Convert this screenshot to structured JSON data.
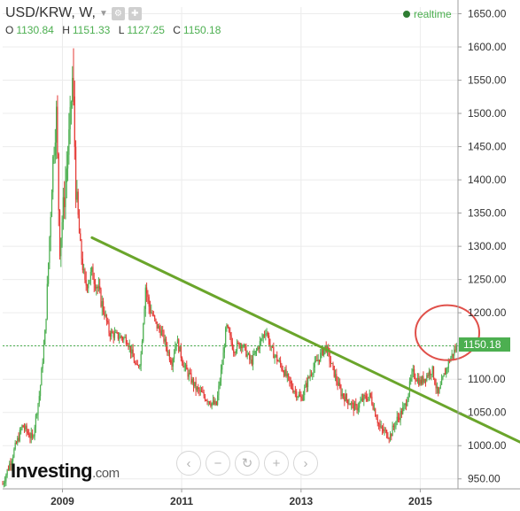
{
  "header": {
    "symbol": "USD/KRW, W,",
    "realtime_label": "realtime",
    "ohlc": {
      "open_label": "O",
      "open": "1130.84",
      "high_label": "H",
      "high": "1151.33",
      "low_label": "L",
      "low": "1127.25",
      "close_label": "C",
      "close": "1150.18"
    }
  },
  "branding": {
    "logo_text": "Investing",
    "logo_suffix": ".com"
  },
  "controls": [
    {
      "name": "scroll-left-button",
      "glyph": "‹"
    },
    {
      "name": "zoom-out-button",
      "glyph": "−"
    },
    {
      "name": "reset-button",
      "glyph": "↻"
    },
    {
      "name": "zoom-in-button",
      "glyph": "+"
    },
    {
      "name": "scroll-right-button",
      "glyph": "›"
    }
  ],
  "colors": {
    "up": "#4caf50",
    "down": "#e53935",
    "trendline": "#6aa52b",
    "circle": "#e0504a",
    "price_line": "#4caf50",
    "text": "#333333"
  },
  "chart_data": {
    "type": "candlestick",
    "y_ticks": [
      950,
      1000,
      1050,
      1100,
      1150,
      1200,
      1250,
      1300,
      1350,
      1400,
      1450,
      1500,
      1550,
      1600,
      1650
    ],
    "y_tick_labels": [
      "950.00",
      "1000.00",
      "1050.00",
      "1100.00",
      "1150.00",
      "1200.00",
      "1250.00",
      "1300.00",
      "1350.00",
      "1400.00",
      "1450.00",
      "1500.00",
      "1550.00",
      "1600.00",
      "1650.00"
    ],
    "ylim": [
      935,
      1660
    ],
    "xlim": [
      "2008-01-01",
      "2015-08-20"
    ],
    "x_ticks": [
      {
        "date": "2009-01-01",
        "label": "2009"
      },
      {
        "date": "2011-01-01",
        "label": "2011"
      },
      {
        "date": "2013-01-01",
        "label": "2013"
      },
      {
        "date": "2015-01-01",
        "label": "2015"
      }
    ],
    "last_price": 1150.18,
    "last_price_label": "1150.18",
    "close_path": [
      [
        "2008-01-01",
        942
      ],
      [
        "2008-03-01",
        985
      ],
      [
        "2008-05-01",
        1030
      ],
      [
        "2008-07-01",
        1010
      ],
      [
        "2008-08-15",
        1080
      ],
      [
        "2008-09-20",
        1180
      ],
      [
        "2008-10-15",
        1320
      ],
      [
        "2008-11-01",
        1420
      ],
      [
        "2008-11-25",
        1500
      ],
      [
        "2008-12-15",
        1300
      ],
      [
        "2009-01-15",
        1380
      ],
      [
        "2009-02-15",
        1480
      ],
      [
        "2009-03-05",
        1560
      ],
      [
        "2009-03-25",
        1380
      ],
      [
        "2009-04-20",
        1300
      ],
      [
        "2009-05-20",
        1240
      ],
      [
        "2009-07-01",
        1260
      ],
      [
        "2009-08-01",
        1240
      ],
      [
        "2009-09-15",
        1200
      ],
      [
        "2009-10-15",
        1170
      ],
      [
        "2009-12-01",
        1165
      ],
      [
        "2010-02-01",
        1160
      ],
      [
        "2010-04-01",
        1115
      ],
      [
        "2010-04-25",
        1130
      ],
      [
        "2010-05-25",
        1240
      ],
      [
        "2010-06-15",
        1210
      ],
      [
        "2010-08-01",
        1180
      ],
      [
        "2010-09-01",
        1170
      ],
      [
        "2010-11-01",
        1125
      ],
      [
        "2010-12-01",
        1160
      ],
      [
        "2011-01-15",
        1120
      ],
      [
        "2011-04-01",
        1085
      ],
      [
        "2011-07-01",
        1065
      ],
      [
        "2011-08-01",
        1060
      ],
      [
        "2011-09-10",
        1130
      ],
      [
        "2011-10-01",
        1180
      ],
      [
        "2011-11-15",
        1145
      ],
      [
        "2012-01-01",
        1155
      ],
      [
        "2012-03-01",
        1125
      ],
      [
        "2012-06-01",
        1175
      ],
      [
        "2012-07-01",
        1145
      ],
      [
        "2012-09-01",
        1120
      ],
      [
        "2012-11-01",
        1090
      ],
      [
        "2013-01-01",
        1070
      ],
      [
        "2013-03-01",
        1110
      ],
      [
        "2013-06-01",
        1150
      ],
      [
        "2013-07-01",
        1125
      ],
      [
        "2013-09-01",
        1080
      ],
      [
        "2013-12-01",
        1055
      ],
      [
        "2014-01-15",
        1070
      ],
      [
        "2014-03-01",
        1075
      ],
      [
        "2014-05-01",
        1025
      ],
      [
        "2014-07-01",
        1015
      ],
      [
        "2014-08-01",
        1035
      ],
      [
        "2014-10-01",
        1060
      ],
      [
        "2014-11-15",
        1110
      ],
      [
        "2015-01-01",
        1095
      ],
      [
        "2015-03-15",
        1115
      ],
      [
        "2015-04-20",
        1075
      ],
      [
        "2015-06-01",
        1110
      ],
      [
        "2015-07-01",
        1130
      ],
      [
        "2015-08-15",
        1150
      ]
    ],
    "extremes": [
      {
        "date": "2009-03-08",
        "value": 1598,
        "kind": "high"
      },
      {
        "date": "2008-01-10",
        "value": 937,
        "kind": "low"
      },
      {
        "date": "2014-07-05",
        "value": 1008,
        "kind": "low"
      }
    ],
    "trendline": {
      "start": [
        "2009-07-01",
        1313
      ],
      "end": [
        "2015-08-20",
        1050
      ]
    },
    "highlight_circle": {
      "date": "2015-05-20",
      "value": 1170
    }
  }
}
